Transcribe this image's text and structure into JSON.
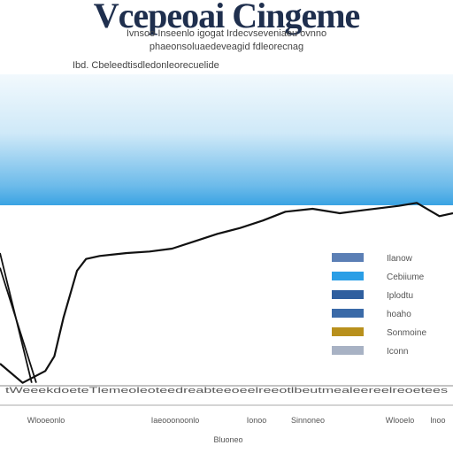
{
  "header": {
    "title": "Vcepeoai Cingeme",
    "subtitle_line1": "Ivnsoo Inseenlo igogat Irdecvseveniaeu ovnno",
    "subtitle_line2": "phaeonsoluaedeveagid fdleorecnag",
    "subtitle_line3": "Ibd. Cbeleedtisdledonleorecuelide"
  },
  "chart_data": {
    "type": "line",
    "title": "Vcepeoai Cingeme",
    "xlabel": "Bluoneo",
    "ylabel": "",
    "series": [
      {
        "values": [
          [
            0.0,
            0.15
          ],
          [
            0.05,
            0.02
          ],
          [
            0.1,
            0.1
          ],
          [
            0.12,
            0.2
          ],
          [
            0.14,
            0.46
          ],
          [
            0.17,
            0.78
          ],
          [
            0.19,
            0.86
          ],
          [
            0.22,
            0.88
          ],
          [
            0.28,
            0.9
          ],
          [
            0.33,
            0.91
          ],
          [
            0.38,
            0.93
          ],
          [
            0.43,
            0.98
          ],
          [
            0.48,
            1.03
          ],
          [
            0.53,
            1.07
          ],
          [
            0.58,
            1.12
          ],
          [
            0.63,
            1.18
          ],
          [
            0.69,
            1.2
          ],
          [
            0.75,
            1.17
          ],
          [
            0.8,
            1.19
          ],
          [
            0.88,
            1.22
          ],
          [
            0.92,
            1.24
          ],
          [
            0.97,
            1.15
          ],
          [
            1.0,
            1.17
          ]
        ]
      },
      {
        "values": [
          [
            0.0,
            0.9
          ],
          [
            0.07,
            0.02
          ]
        ]
      },
      {
        "values": [
          [
            0.0,
            0.8
          ],
          [
            0.08,
            0.02
          ]
        ]
      }
    ],
    "legend": {
      "placement": "right",
      "entries": [
        {
          "label": "Ilanow",
          "color": "#5b7fb5"
        },
        {
          "label": "Cebiiume",
          "color": "#2a9ee6"
        },
        {
          "label": "Iplodtu",
          "color": "#2f5f9f"
        },
        {
          "label": "hoaho",
          "color": "#3a6aa8"
        },
        {
          "label": "Sonmoine",
          "color": "#b8901c"
        },
        {
          "label": "Iconn",
          "color": "#a8b2c4"
        }
      ]
    },
    "x_tick_row": "tWeeekdoeteTlemeoleoteedreabteeoeelreeotlbeutmealeereelreoetees",
    "bottom_labels": [
      "Wlooeonlo",
      "Iaeooonoonlo",
      "Ionoo",
      "Sinnoneo",
      "Wlooelo",
      "lnoo"
    ],
    "grid": false
  }
}
